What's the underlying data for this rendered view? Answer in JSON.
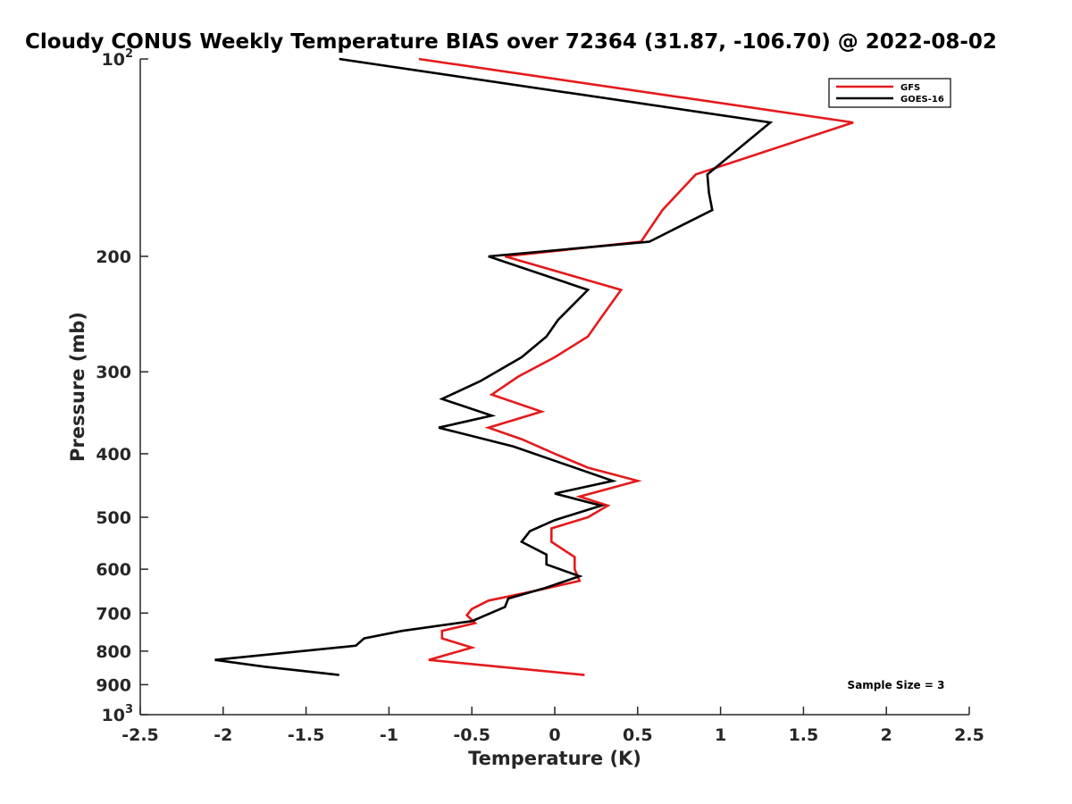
{
  "chart_data": {
    "type": "line",
    "title": "Cloudy CONUS Weekly Temperature BIAS over 72364 (31.87, -106.70) @ 2022-08-02",
    "xlabel": "Temperature (K)",
    "ylabel": "Pressure (mb)",
    "xlim": [
      -2.5,
      2.5
    ],
    "ylim": [
      100,
      1000
    ],
    "y_scale": "log",
    "y_reversed": true,
    "x_ticks": [
      {
        "value": -2.5,
        "label": "-2.5"
      },
      {
        "value": -2,
        "label": "-2"
      },
      {
        "value": -1.5,
        "label": "-1.5"
      },
      {
        "value": -1,
        "label": "-1"
      },
      {
        "value": -0.5,
        "label": "-0.5"
      },
      {
        "value": 0,
        "label": "0"
      },
      {
        "value": 0.5,
        "label": "0.5"
      },
      {
        "value": 1,
        "label": "1"
      },
      {
        "value": 1.5,
        "label": "1.5"
      },
      {
        "value": 2,
        "label": "2"
      },
      {
        "value": 2.5,
        "label": "2.5"
      }
    ],
    "y_ticks": [
      {
        "value": 100,
        "label": "10",
        "sup": "2"
      },
      {
        "value": 200,
        "label": "200",
        "sup": ""
      },
      {
        "value": 300,
        "label": "300",
        "sup": ""
      },
      {
        "value": 400,
        "label": "400",
        "sup": ""
      },
      {
        "value": 500,
        "label": "500",
        "sup": ""
      },
      {
        "value": 600,
        "label": "600",
        "sup": ""
      },
      {
        "value": 700,
        "label": "700",
        "sup": ""
      },
      {
        "value": 800,
        "label": "800",
        "sup": ""
      },
      {
        "value": 900,
        "label": "900",
        "sup": ""
      },
      {
        "value": 1000,
        "label": "10",
        "sup": "3"
      }
    ],
    "grid": false,
    "legend_position": "top-right",
    "annotation": "Sample Size = 3",
    "series": [
      {
        "name": "GFS",
        "color": "#e41a1c",
        "points": [
          {
            "x": -0.82,
            "p": 100
          },
          {
            "x": 1.8,
            "p": 125
          },
          {
            "x": 0.85,
            "p": 150
          },
          {
            "x": 0.65,
            "p": 170
          },
          {
            "x": 0.52,
            "p": 190
          },
          {
            "x": -0.3,
            "p": 200
          },
          {
            "x": 0.4,
            "p": 225
          },
          {
            "x": 0.27,
            "p": 250
          },
          {
            "x": 0.2,
            "p": 265
          },
          {
            "x": 0.0,
            "p": 285
          },
          {
            "x": -0.22,
            "p": 305
          },
          {
            "x": -0.38,
            "p": 325
          },
          {
            "x": -0.08,
            "p": 345
          },
          {
            "x": -0.4,
            "p": 365
          },
          {
            "x": -0.2,
            "p": 380
          },
          {
            "x": 0.0,
            "p": 400
          },
          {
            "x": 0.2,
            "p": 420
          },
          {
            "x": 0.5,
            "p": 440
          },
          {
            "x": 0.15,
            "p": 465
          },
          {
            "x": 0.32,
            "p": 480
          },
          {
            "x": 0.2,
            "p": 500
          },
          {
            "x": -0.02,
            "p": 520
          },
          {
            "x": -0.02,
            "p": 545
          },
          {
            "x": 0.12,
            "p": 575
          },
          {
            "x": 0.12,
            "p": 600
          },
          {
            "x": 0.15,
            "p": 625
          },
          {
            "x": -0.15,
            "p": 650
          },
          {
            "x": -0.4,
            "p": 670
          },
          {
            "x": -0.5,
            "p": 690
          },
          {
            "x": -0.53,
            "p": 705
          },
          {
            "x": -0.48,
            "p": 725
          },
          {
            "x": -0.68,
            "p": 745
          },
          {
            "x": -0.68,
            "p": 765
          },
          {
            "x": -0.5,
            "p": 790
          },
          {
            "x": -0.76,
            "p": 825
          },
          {
            "x": 0.18,
            "p": 870
          }
        ]
      },
      {
        "name": "GOES-16",
        "color": "#000000",
        "points": [
          {
            "x": -1.3,
            "p": 100
          },
          {
            "x": 1.3,
            "p": 125
          },
          {
            "x": 0.92,
            "p": 150
          },
          {
            "x": 0.93,
            "p": 160
          },
          {
            "x": 0.95,
            "p": 170
          },
          {
            "x": 0.57,
            "p": 190
          },
          {
            "x": -0.4,
            "p": 200
          },
          {
            "x": 0.2,
            "p": 225
          },
          {
            "x": 0.02,
            "p": 250
          },
          {
            "x": -0.05,
            "p": 265
          },
          {
            "x": -0.2,
            "p": 285
          },
          {
            "x": -0.45,
            "p": 310
          },
          {
            "x": -0.68,
            "p": 330
          },
          {
            "x": -0.38,
            "p": 350
          },
          {
            "x": -0.7,
            "p": 365
          },
          {
            "x": -0.25,
            "p": 390
          },
          {
            "x": 0.0,
            "p": 410
          },
          {
            "x": 0.35,
            "p": 440
          },
          {
            "x": 0.0,
            "p": 460
          },
          {
            "x": 0.28,
            "p": 480
          },
          {
            "x": 0.0,
            "p": 505
          },
          {
            "x": -0.15,
            "p": 525
          },
          {
            "x": -0.2,
            "p": 545
          },
          {
            "x": -0.05,
            "p": 570
          },
          {
            "x": -0.05,
            "p": 590
          },
          {
            "x": 0.15,
            "p": 615
          },
          {
            "x": -0.05,
            "p": 640
          },
          {
            "x": -0.28,
            "p": 665
          },
          {
            "x": -0.3,
            "p": 685
          },
          {
            "x": -0.5,
            "p": 720
          },
          {
            "x": -0.92,
            "p": 745
          },
          {
            "x": -1.15,
            "p": 765
          },
          {
            "x": -1.2,
            "p": 785
          },
          {
            "x": -2.05,
            "p": 825
          },
          {
            "x": -1.75,
            "p": 845
          },
          {
            "x": -1.3,
            "p": 870
          }
        ]
      }
    ]
  }
}
